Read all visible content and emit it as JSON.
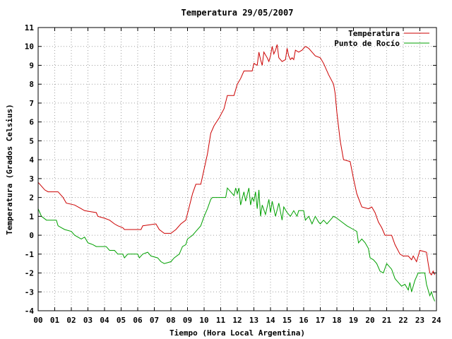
{
  "chart_data": {
    "type": "line",
    "title": "Temperatura 29/05/2007",
    "xlabel": "Tiempo (Hora Local Argentina)",
    "ylabel": "Temperatura (Grados Celsius)",
    "xlim": [
      0,
      24
    ],
    "ylim": [
      -4,
      11
    ],
    "x_ticks": [
      "00",
      "01",
      "02",
      "03",
      "04",
      "05",
      "06",
      "07",
      "08",
      "09",
      "10",
      "11",
      "12",
      "13",
      "14",
      "15",
      "16",
      "17",
      "18",
      "19",
      "20",
      "21",
      "22",
      "23",
      "24"
    ],
    "y_ticks": [
      "-4",
      "-3",
      "-2",
      "-1",
      "0",
      "1",
      "2",
      "3",
      "4",
      "5",
      "6",
      "7",
      "8",
      "9",
      "10",
      "11"
    ],
    "grid": true,
    "legend_position": "top-right",
    "series": [
      {
        "name": "Temperatura",
        "color": "#cc0000",
        "points": [
          [
            0.0,
            2.8
          ],
          [
            0.2,
            2.6
          ],
          [
            0.4,
            2.4
          ],
          [
            0.6,
            2.3
          ],
          [
            1.2,
            2.3
          ],
          [
            1.5,
            2.0
          ],
          [
            1.7,
            1.7
          ],
          [
            2.2,
            1.6
          ],
          [
            2.6,
            1.4
          ],
          [
            2.8,
            1.3
          ],
          [
            3.5,
            1.2
          ],
          [
            3.6,
            1.0
          ],
          [
            4.0,
            0.9
          ],
          [
            4.3,
            0.8
          ],
          [
            4.6,
            0.6
          ],
          [
            4.8,
            0.5
          ],
          [
            5.1,
            0.4
          ],
          [
            5.2,
            0.3
          ],
          [
            6.2,
            0.3
          ],
          [
            6.3,
            0.5
          ],
          [
            7.1,
            0.6
          ],
          [
            7.3,
            0.3
          ],
          [
            7.6,
            0.1
          ],
          [
            8.0,
            0.1
          ],
          [
            8.3,
            0.3
          ],
          [
            8.6,
            0.6
          ],
          [
            8.9,
            0.8
          ],
          [
            9.1,
            1.5
          ],
          [
            9.3,
            2.2
          ],
          [
            9.5,
            2.7
          ],
          [
            9.8,
            2.7
          ],
          [
            10.0,
            3.5
          ],
          [
            10.2,
            4.3
          ],
          [
            10.4,
            5.4
          ],
          [
            10.6,
            5.8
          ],
          [
            10.9,
            6.2
          ],
          [
            11.2,
            6.7
          ],
          [
            11.4,
            7.4
          ],
          [
            11.8,
            7.4
          ],
          [
            12.0,
            8.0
          ],
          [
            12.2,
            8.3
          ],
          [
            12.4,
            8.7
          ],
          [
            12.9,
            8.7
          ],
          [
            13.0,
            9.1
          ],
          [
            13.2,
            9.0
          ],
          [
            13.3,
            9.7
          ],
          [
            13.4,
            9.3
          ],
          [
            13.5,
            9.0
          ],
          [
            13.6,
            9.7
          ],
          [
            13.8,
            9.4
          ],
          [
            13.9,
            9.2
          ],
          [
            14.0,
            9.5
          ],
          [
            14.1,
            10.0
          ],
          [
            14.2,
            9.6
          ],
          [
            14.3,
            9.8
          ],
          [
            14.4,
            10.1
          ],
          [
            14.5,
            9.4
          ],
          [
            14.6,
            9.3
          ],
          [
            14.7,
            9.2
          ],
          [
            14.9,
            9.3
          ],
          [
            15.0,
            9.9
          ],
          [
            15.1,
            9.5
          ],
          [
            15.2,
            9.3
          ],
          [
            15.3,
            9.4
          ],
          [
            15.4,
            9.3
          ],
          [
            15.5,
            9.8
          ],
          [
            15.7,
            9.7
          ],
          [
            15.9,
            9.8
          ],
          [
            16.1,
            10.0
          ],
          [
            16.3,
            9.9
          ],
          [
            16.5,
            9.7
          ],
          [
            16.7,
            9.5
          ],
          [
            17.0,
            9.4
          ],
          [
            17.2,
            9.1
          ],
          [
            17.5,
            8.5
          ],
          [
            17.8,
            8.0
          ],
          [
            17.9,
            7.5
          ],
          [
            18.0,
            6.5
          ],
          [
            18.2,
            5.0
          ],
          [
            18.4,
            4.0
          ],
          [
            18.8,
            3.9
          ],
          [
            19.0,
            3.0
          ],
          [
            19.2,
            2.2
          ],
          [
            19.5,
            1.5
          ],
          [
            19.9,
            1.4
          ],
          [
            20.1,
            1.5
          ],
          [
            20.3,
            1.2
          ],
          [
            20.5,
            0.7
          ],
          [
            20.7,
            0.4
          ],
          [
            20.9,
            0.0
          ],
          [
            21.3,
            0.0
          ],
          [
            21.5,
            -0.5
          ],
          [
            21.8,
            -1.0
          ],
          [
            22.0,
            -1.1
          ],
          [
            22.3,
            -1.1
          ],
          [
            22.5,
            -1.3
          ],
          [
            22.6,
            -1.1
          ],
          [
            22.8,
            -1.4
          ],
          [
            23.0,
            -0.8
          ],
          [
            23.4,
            -0.9
          ],
          [
            23.5,
            -1.5
          ],
          [
            23.6,
            -2.0
          ],
          [
            23.7,
            -2.1
          ],
          [
            23.8,
            -1.9
          ],
          [
            23.9,
            -2.1
          ]
        ]
      },
      {
        "name": "Punto de Rocío",
        "color": "#00a000",
        "points": [
          [
            0.0,
            1.4
          ],
          [
            0.1,
            1.2
          ],
          [
            0.2,
            1.0
          ],
          [
            0.5,
            0.8
          ],
          [
            1.1,
            0.8
          ],
          [
            1.2,
            0.5
          ],
          [
            1.4,
            0.4
          ],
          [
            1.6,
            0.3
          ],
          [
            2.0,
            0.2
          ],
          [
            2.2,
            0.0
          ],
          [
            2.6,
            -0.2
          ],
          [
            2.8,
            -0.1
          ],
          [
            3.0,
            -0.4
          ],
          [
            3.3,
            -0.5
          ],
          [
            3.5,
            -0.6
          ],
          [
            4.1,
            -0.6
          ],
          [
            4.3,
            -0.8
          ],
          [
            4.6,
            -0.8
          ],
          [
            4.8,
            -1.0
          ],
          [
            5.1,
            -1.0
          ],
          [
            5.2,
            -1.2
          ],
          [
            5.4,
            -1.0
          ],
          [
            6.0,
            -1.0
          ],
          [
            6.1,
            -1.2
          ],
          [
            6.3,
            -1.0
          ],
          [
            6.6,
            -0.9
          ],
          [
            6.8,
            -1.1
          ],
          [
            7.2,
            -1.2
          ],
          [
            7.4,
            -1.4
          ],
          [
            7.6,
            -1.5
          ],
          [
            8.0,
            -1.4
          ],
          [
            8.2,
            -1.2
          ],
          [
            8.5,
            -1.0
          ],
          [
            8.7,
            -0.6
          ],
          [
            8.9,
            -0.5
          ],
          [
            9.0,
            -0.2
          ],
          [
            9.3,
            0.0
          ],
          [
            9.5,
            0.2
          ],
          [
            9.8,
            0.5
          ],
          [
            10.0,
            1.0
          ],
          [
            10.2,
            1.4
          ],
          [
            10.4,
            1.9
          ],
          [
            10.5,
            2.0
          ],
          [
            11.3,
            2.0
          ],
          [
            11.4,
            2.5
          ],
          [
            11.6,
            2.3
          ],
          [
            11.8,
            2.1
          ],
          [
            11.9,
            2.5
          ],
          [
            12.0,
            2.2
          ],
          [
            12.1,
            2.5
          ],
          [
            12.2,
            1.6
          ],
          [
            12.4,
            2.3
          ],
          [
            12.5,
            1.8
          ],
          [
            12.7,
            2.5
          ],
          [
            12.8,
            1.6
          ],
          [
            12.9,
            2.0
          ],
          [
            13.0,
            1.8
          ],
          [
            13.1,
            2.3
          ],
          [
            13.2,
            1.4
          ],
          [
            13.3,
            2.4
          ],
          [
            13.4,
            1.0
          ],
          [
            13.5,
            1.6
          ],
          [
            13.7,
            1.1
          ],
          [
            13.9,
            1.9
          ],
          [
            14.0,
            1.2
          ],
          [
            14.1,
            1.8
          ],
          [
            14.3,
            1.0
          ],
          [
            14.5,
            1.7
          ],
          [
            14.7,
            0.8
          ],
          [
            14.8,
            1.5
          ],
          [
            15.0,
            1.2
          ],
          [
            15.2,
            1.0
          ],
          [
            15.4,
            1.3
          ],
          [
            15.6,
            1.0
          ],
          [
            15.7,
            1.3
          ],
          [
            16.0,
            1.3
          ],
          [
            16.1,
            0.8
          ],
          [
            16.3,
            1.0
          ],
          [
            16.5,
            0.6
          ],
          [
            16.7,
            1.0
          ],
          [
            16.9,
            0.7
          ],
          [
            17.0,
            0.6
          ],
          [
            17.2,
            0.8
          ],
          [
            17.4,
            0.6
          ],
          [
            17.6,
            0.8
          ],
          [
            17.8,
            1.0
          ],
          [
            18.0,
            0.9
          ],
          [
            18.3,
            0.7
          ],
          [
            18.6,
            0.5
          ],
          [
            19.0,
            0.3
          ],
          [
            19.2,
            0.2
          ],
          [
            19.3,
            -0.4
          ],
          [
            19.5,
            -0.2
          ],
          [
            19.7,
            -0.4
          ],
          [
            19.9,
            -0.7
          ],
          [
            20.0,
            -1.2
          ],
          [
            20.2,
            -1.3
          ],
          [
            20.4,
            -1.5
          ],
          [
            20.6,
            -1.9
          ],
          [
            20.8,
            -2.0
          ],
          [
            21.0,
            -1.5
          ],
          [
            21.3,
            -1.8
          ],
          [
            21.5,
            -2.3
          ],
          [
            21.7,
            -2.5
          ],
          [
            21.9,
            -2.7
          ],
          [
            22.1,
            -2.6
          ],
          [
            22.3,
            -2.9
          ],
          [
            22.4,
            -2.5
          ],
          [
            22.5,
            -3.0
          ],
          [
            22.7,
            -2.4
          ],
          [
            22.9,
            -2.0
          ],
          [
            23.3,
            -2.0
          ],
          [
            23.4,
            -2.6
          ],
          [
            23.6,
            -3.2
          ],
          [
            23.7,
            -3.0
          ],
          [
            23.8,
            -3.3
          ],
          [
            23.9,
            -3.5
          ]
        ]
      }
    ]
  }
}
